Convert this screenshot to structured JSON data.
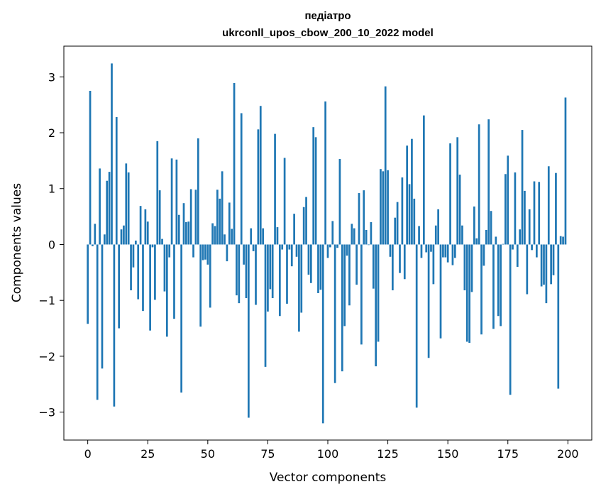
{
  "chart_data": {
    "type": "bar",
    "title_line1": "педіатро",
    "title_line2": "ukrconll_upos_cbow_200_10_2022 model",
    "xlabel": "Vector components",
    "ylabel": "Components values",
    "xlim": [
      -9.95,
      209.95
    ],
    "ylim": [
      -3.5,
      3.55
    ],
    "xticks": [
      0,
      25,
      50,
      75,
      100,
      125,
      150,
      175,
      200
    ],
    "xtick_labels": [
      "0",
      "25",
      "50",
      "75",
      "100",
      "125",
      "150",
      "175",
      "200"
    ],
    "yticks": [
      -3,
      -2,
      -1,
      0,
      1,
      2,
      3
    ],
    "ytick_labels": [
      "−3",
      "−2",
      "−1",
      "0",
      "1",
      "2",
      "3"
    ],
    "grid": false,
    "bar_color": "#1f77b4",
    "values": [
      -1.42,
      2.75,
      -0.03,
      0.37,
      -2.78,
      1.36,
      -2.22,
      0.18,
      1.14,
      1.3,
      3.24,
      -2.9,
      2.28,
      -1.5,
      0.27,
      0.34,
      1.45,
      1.29,
      -0.82,
      -0.41,
      0.07,
      -0.98,
      0.69,
      -1.19,
      0.63,
      0.41,
      -1.54,
      -0.05,
      -0.99,
      1.85,
      0.97,
      0.1,
      -0.84,
      -1.65,
      -0.23,
      1.54,
      -1.33,
      1.52,
      0.53,
      -2.65,
      0.74,
      0.4,
      0.41,
      0.99,
      -0.23,
      0.98,
      1.9,
      -1.47,
      -0.28,
      -0.27,
      -0.36,
      -1.13,
      0.38,
      0.33,
      0.98,
      0.82,
      1.31,
      0.18,
      -0.3,
      0.75,
      0.28,
      2.89,
      -0.91,
      -1.05,
      2.35,
      -0.36,
      -0.96,
      -3.1,
      0.29,
      -0.12,
      -1.08,
      2.06,
      2.48,
      0.29,
      -2.19,
      -1.2,
      -0.8,
      -0.96,
      1.98,
      0.31,
      -1.28,
      -0.09,
      1.55,
      -1.06,
      -0.09,
      -0.39,
      0.55,
      -0.22,
      -1.56,
      -1.22,
      0.67,
      0.85,
      -0.54,
      -0.69,
      2.1,
      1.92,
      -0.87,
      -0.81,
      -3.2,
      2.56,
      -0.24,
      -0.05,
      0.42,
      -2.48,
      -0.06,
      1.53,
      -2.27,
      -1.46,
      -0.2,
      -1.09,
      0.37,
      0.29,
      -0.72,
      0.92,
      -1.79,
      0.97,
      0.26,
      -0.01,
      0.4,
      -0.79,
      -2.18,
      -1.74,
      1.35,
      1.31,
      2.83,
      1.33,
      -0.22,
      -0.82,
      0.48,
      0.76,
      -0.51,
      1.2,
      -0.62,
      1.77,
      1.08,
      1.89,
      0.82,
      -2.92,
      0.33,
      -0.24,
      2.31,
      -0.14,
      -2.03,
      -0.13,
      -0.71,
      0.34,
      0.63,
      -1.68,
      -0.23,
      -0.23,
      -0.32,
      1.81,
      -0.37,
      -0.24,
      1.92,
      1.25,
      0.34,
      -0.82,
      -1.74,
      -1.76,
      -0.85,
      0.68,
      0.11,
      2.15,
      -1.61,
      -0.38,
      0.26,
      2.24,
      0.6,
      -1.51,
      0.14,
      -1.28,
      -1.46,
      0.01,
      1.26,
      1.59,
      -2.69,
      -0.09,
      1.29,
      -0.4,
      0.27,
      2.05,
      0.96,
      -0.89,
      0.63,
      -0.1,
      1.13,
      -0.23,
      1.12,
      -0.75,
      -0.72,
      -1.05,
      1.4,
      -0.71,
      -0.55,
      1.28,
      -2.58,
      0.15,
      0.14,
      2.63
    ]
  }
}
